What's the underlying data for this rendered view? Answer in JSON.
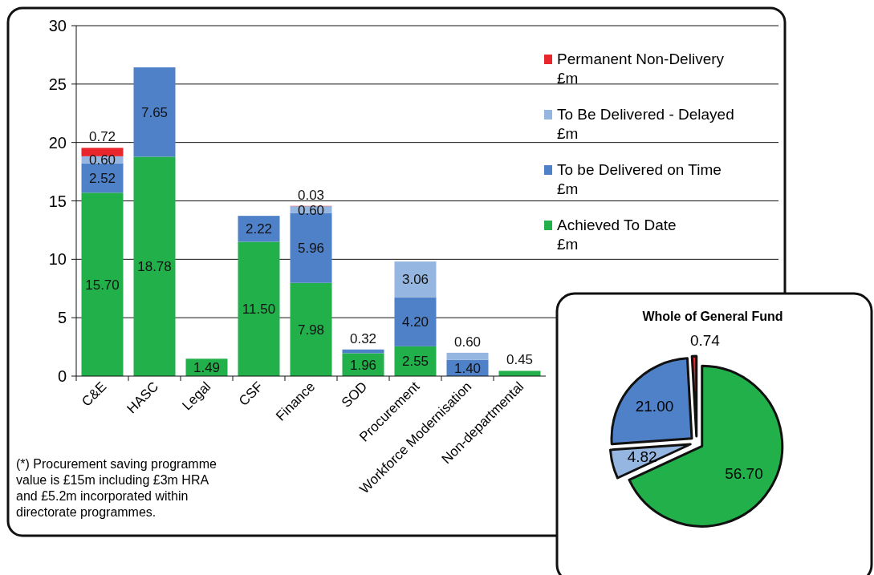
{
  "chart_data": [
    {
      "type": "bar",
      "stacked": true,
      "categories": [
        "C&E",
        "HASC",
        "Legal",
        "CSF",
        "Finance",
        "SOD",
        "Procurement",
        "Workforce Modernisation",
        "Non-departmental"
      ],
      "series": [
        {
          "name": "Achieved To Date £m",
          "color": "#22b04b",
          "values": [
            15.7,
            18.78,
            1.49,
            11.5,
            7.98,
            1.96,
            2.55,
            null,
            0.45
          ],
          "value_labels": [
            "15.70",
            "18.78",
            "1.49",
            "11.50",
            "7.98",
            "1.96",
            "2.55",
            null,
            "0.45"
          ]
        },
        {
          "name": "To be Delivered on Time £m",
          "color": "#4f81c8",
          "values": [
            2.52,
            7.65,
            null,
            2.22,
            5.96,
            0.32,
            4.2,
            1.4,
            null
          ],
          "value_labels": [
            "2.52",
            "7.65",
            null,
            "2.22",
            "5.96",
            "0.32",
            "4.20",
            "1.40",
            null
          ]
        },
        {
          "name": "To Be Delivered - Delayed £m",
          "color": "#95b6e0",
          "values": [
            0.6,
            null,
            null,
            null,
            0.6,
            null,
            3.06,
            0.6,
            null
          ],
          "value_labels": [
            "0.60",
            null,
            null,
            null,
            "0.60",
            null,
            "3.06",
            "0.60",
            null
          ]
        },
        {
          "name": "Permanent Non-Delivery £m",
          "color": "#e8262b",
          "values": [
            0.72,
            null,
            null,
            null,
            0.03,
            null,
            null,
            null,
            null
          ],
          "value_labels": [
            "0.72",
            null,
            null,
            null,
            "0.03",
            null,
            null,
            null,
            null
          ]
        }
      ],
      "ylim": [
        0,
        30
      ],
      "yticks": [
        0,
        5,
        10,
        15,
        20,
        25,
        30
      ],
      "grid": "y",
      "legend": "right",
      "annotations": [
        "(*) Procurement saving programme value  is £15m including £3m HRA and £5.2m incorporated within directorate programmes."
      ]
    },
    {
      "type": "pie",
      "title": "Whole of General Fund",
      "categories": [
        null,
        null,
        null,
        null
      ],
      "values": [
        56.7,
        4.82,
        21.0,
        0.74
      ],
      "colors": [
        "#22b04b",
        "#95b6e0",
        "#4f81c8",
        "#e8262b"
      ],
      "value_labels": [
        "56.70",
        "4.82",
        "21.00",
        "0.74"
      ]
    }
  ]
}
